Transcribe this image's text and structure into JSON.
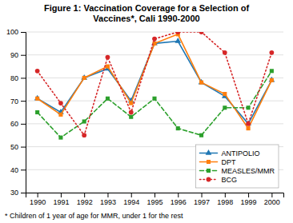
{
  "chart_data": {
    "type": "line",
    "title": "Figure 1: Vaccination Coverage for a Selection of\nVaccines*, Cali 1990-2000",
    "annotations": [
      "* Children of 1 year of age for MMR, under 1 for the rest"
    ],
    "x": [
      1990,
      1991,
      1992,
      1993,
      1994,
      1995,
      1996,
      1997,
      1998,
      1999,
      2000
    ],
    "xlim": [
      1989.5,
      2000.5
    ],
    "xticks": [
      1990,
      1991,
      1992,
      1993,
      1994,
      1995,
      1996,
      1997,
      1998,
      1999,
      2000
    ],
    "ylim": [
      30,
      100
    ],
    "yticks": [
      30,
      40,
      50,
      60,
      70,
      80,
      90,
      100
    ],
    "grid": true,
    "legend": "lower right",
    "series": [
      {
        "name": "ANTIPOLIO",
        "marker": "triangle",
        "line_style": "solid",
        "values": [
          71,
          65,
          80,
          84,
          70,
          95,
          96,
          78,
          72,
          60,
          79
        ]
      },
      {
        "name": "DPT",
        "marker": "square",
        "line_style": "solid",
        "values": [
          71,
          64,
          80,
          85,
          69,
          95,
          99,
          78,
          73,
          58,
          79
        ]
      },
      {
        "name": "MEASLES/MMR",
        "marker": "square",
        "line_style": "dashed",
        "values": [
          65,
          54,
          61,
          71,
          63,
          71,
          58,
          55,
          67,
          67,
          83
        ]
      },
      {
        "name": "BCG",
        "marker": "circle",
        "line_style": "dotted",
        "values": [
          83,
          69,
          55,
          89,
          65,
          97,
          100,
          100,
          91,
          60,
          91
        ]
      }
    ]
  }
}
